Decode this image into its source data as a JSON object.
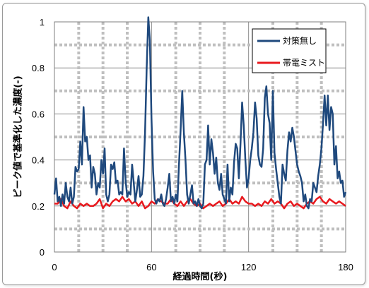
{
  "chart_data": {
    "type": "line",
    "title": "",
    "xlabel": "経過時間(秒)",
    "ylabel": "ピーク値で基準化した濃度(-)",
    "xlim": [
      0,
      180
    ],
    "ylim": [
      0,
      1
    ],
    "x_ticks": [
      0,
      60,
      120,
      180
    ],
    "y_ticks": [
      0,
      0.2,
      0.4,
      0.6,
      0.8,
      1
    ],
    "x_tick_labels": [
      "0",
      "60",
      "120",
      "180"
    ],
    "y_tick_labels": [
      "0",
      "0.2",
      "0.4",
      "0.6",
      "0.8",
      "1"
    ],
    "grid": true,
    "legend_position": "top-right",
    "series": [
      {
        "name": "対策無し",
        "color": "#1f497d",
        "points": [
          [
            0,
            0.25
          ],
          [
            1,
            0.32
          ],
          [
            2,
            0.22
          ],
          [
            3,
            0.24
          ],
          [
            4,
            0.2
          ],
          [
            5,
            0.25
          ],
          [
            6,
            0.21
          ],
          [
            7,
            0.3
          ],
          [
            8,
            0.24
          ],
          [
            9,
            0.22
          ],
          [
            10,
            0.28
          ],
          [
            11,
            0.21
          ],
          [
            12,
            0.24
          ],
          [
            13,
            0.37
          ],
          [
            14,
            0.35
          ],
          [
            15,
            0.36
          ],
          [
            16,
            0.48
          ],
          [
            17,
            0.38
          ],
          [
            18,
            0.63
          ],
          [
            19,
            0.48
          ],
          [
            20,
            0.5
          ],
          [
            21,
            0.4
          ],
          [
            22,
            0.42
          ],
          [
            23,
            0.28
          ],
          [
            24,
            0.37
          ],
          [
            25,
            0.34
          ],
          [
            26,
            0.25
          ],
          [
            27,
            0.3
          ],
          [
            28,
            0.28
          ],
          [
            29,
            0.4
          ],
          [
            30,
            0.34
          ],
          [
            31,
            0.45
          ],
          [
            32,
            0.25
          ],
          [
            33,
            0.22
          ],
          [
            34,
            0.25
          ],
          [
            35,
            0.38
          ],
          [
            36,
            0.36
          ],
          [
            37,
            0.39
          ],
          [
            38,
            0.3
          ],
          [
            39,
            0.31
          ],
          [
            40,
            0.25
          ],
          [
            41,
            0.26
          ],
          [
            42,
            0.25
          ],
          [
            43,
            0.45
          ],
          [
            44,
            0.31
          ],
          [
            45,
            0.24
          ],
          [
            46,
            0.26
          ],
          [
            47,
            0.25
          ],
          [
            48,
            0.38
          ],
          [
            49,
            0.3
          ],
          [
            50,
            0.22
          ],
          [
            51,
            0.27
          ],
          [
            52,
            0.33
          ],
          [
            53,
            0.24
          ],
          [
            54,
            0.25
          ],
          [
            55,
            0.33
          ],
          [
            56,
            0.52
          ],
          [
            57,
            0.8
          ],
          [
            58,
            1.02
          ],
          [
            59,
            0.92
          ],
          [
            60,
            0.58
          ],
          [
            61,
            0.35
          ],
          [
            62,
            0.23
          ],
          [
            63,
            0.21
          ],
          [
            64,
            0.23
          ],
          [
            65,
            0.22
          ],
          [
            66,
            0.25
          ],
          [
            67,
            0.21
          ],
          [
            68,
            0.2
          ],
          [
            69,
            0.23
          ],
          [
            70,
            0.28
          ],
          [
            71,
            0.34
          ],
          [
            72,
            0.22
          ],
          [
            73,
            0.24
          ],
          [
            74,
            0.21
          ],
          [
            75,
            0.25
          ],
          [
            76,
            0.22
          ],
          [
            77,
            0.38
          ],
          [
            78,
            0.53
          ],
          [
            79,
            0.7
          ],
          [
            80,
            0.52
          ],
          [
            81,
            0.4
          ],
          [
            82,
            0.25
          ],
          [
            83,
            0.21
          ],
          [
            84,
            0.25
          ],
          [
            85,
            0.29
          ],
          [
            86,
            0.21
          ],
          [
            87,
            0.22
          ],
          [
            88,
            0.2
          ],
          [
            89,
            0.23
          ],
          [
            90,
            0.2
          ],
          [
            91,
            0.19
          ],
          [
            92,
            0.21
          ],
          [
            93,
            0.38
          ],
          [
            94,
            0.4
          ],
          [
            95,
            0.55
          ],
          [
            96,
            0.38
          ],
          [
            97,
            0.49
          ],
          [
            98,
            0.43
          ],
          [
            99,
            0.34
          ],
          [
            100,
            0.41
          ],
          [
            101,
            0.3
          ],
          [
            102,
            0.27
          ],
          [
            103,
            0.34
          ],
          [
            104,
            0.25
          ],
          [
            105,
            0.23
          ],
          [
            106,
            0.21
          ],
          [
            107,
            0.38
          ],
          [
            108,
            0.22
          ],
          [
            109,
            0.28
          ],
          [
            110,
            0.25
          ],
          [
            111,
            0.39
          ],
          [
            112,
            0.47
          ],
          [
            113,
            0.45
          ],
          [
            114,
            0.32
          ],
          [
            115,
            0.47
          ],
          [
            116,
            0.65
          ],
          [
            117,
            0.55
          ],
          [
            118,
            0.4
          ],
          [
            119,
            0.28
          ],
          [
            120,
            0.32
          ],
          [
            121,
            0.4
          ],
          [
            122,
            0.45
          ],
          [
            123,
            0.52
          ],
          [
            124,
            0.65
          ],
          [
            125,
            0.58
          ],
          [
            126,
            0.42
          ],
          [
            127,
            0.38
          ],
          [
            128,
            0.37
          ],
          [
            129,
            0.45
          ],
          [
            130,
            0.67
          ],
          [
            131,
            0.72
          ],
          [
            132,
            0.6
          ],
          [
            133,
            0.56
          ],
          [
            134,
            0.4
          ],
          [
            135,
            0.7
          ],
          [
            136,
            0.43
          ],
          [
            137,
            0.36
          ],
          [
            138,
            0.3
          ],
          [
            139,
            0.24
          ],
          [
            140,
            0.21
          ],
          [
            141,
            0.38
          ],
          [
            142,
            0.34
          ],
          [
            143,
            0.31
          ],
          [
            144,
            0.44
          ],
          [
            145,
            0.52
          ],
          [
            146,
            0.48
          ],
          [
            147,
            0.54
          ],
          [
            148,
            0.5
          ],
          [
            149,
            0.44
          ],
          [
            150,
            0.38
          ],
          [
            151,
            0.35
          ],
          [
            152,
            0.33
          ],
          [
            153,
            0.3
          ],
          [
            154,
            0.22
          ],
          [
            155,
            0.25
          ],
          [
            156,
            0.2
          ],
          [
            157,
            0.19
          ],
          [
            158,
            0.23
          ],
          [
            159,
            0.22
          ],
          [
            160,
            0.3
          ],
          [
            161,
            0.28
          ],
          [
            162,
            0.26
          ],
          [
            163,
            0.33
          ],
          [
            164,
            0.38
          ],
          [
            165,
            0.45
          ],
          [
            166,
            0.56
          ],
          [
            167,
            0.68
          ],
          [
            168,
            0.55
          ],
          [
            169,
            0.68
          ],
          [
            170,
            0.53
          ],
          [
            171,
            0.63
          ],
          [
            172,
            0.6
          ],
          [
            173,
            0.38
          ],
          [
            174,
            0.46
          ],
          [
            175,
            0.32
          ],
          [
            176,
            0.35
          ],
          [
            177,
            0.3
          ],
          [
            178,
            0.31
          ],
          [
            179,
            0.24
          ],
          [
            180,
            0.26
          ]
        ]
      },
      {
        "name": "帯電ミスト",
        "color": "#e8191e",
        "points": [
          [
            0,
            0.21
          ],
          [
            2,
            0.21
          ],
          [
            4,
            0.23
          ],
          [
            6,
            0.2
          ],
          [
            8,
            0.19
          ],
          [
            10,
            0.22
          ],
          [
            12,
            0.2
          ],
          [
            14,
            0.19
          ],
          [
            16,
            0.21
          ],
          [
            18,
            0.2
          ],
          [
            20,
            0.21
          ],
          [
            22,
            0.2
          ],
          [
            24,
            0.2
          ],
          [
            26,
            0.21
          ],
          [
            28,
            0.23
          ],
          [
            30,
            0.19
          ],
          [
            32,
            0.21
          ],
          [
            34,
            0.2
          ],
          [
            36,
            0.22
          ],
          [
            38,
            0.23
          ],
          [
            40,
            0.22
          ],
          [
            42,
            0.24
          ],
          [
            44,
            0.22
          ],
          [
            46,
            0.23
          ],
          [
            48,
            0.21
          ],
          [
            50,
            0.22
          ],
          [
            52,
            0.2
          ],
          [
            54,
            0.22
          ],
          [
            56,
            0.19
          ],
          [
            58,
            0.2
          ],
          [
            60,
            0.22
          ],
          [
            62,
            0.21
          ],
          [
            64,
            0.23
          ],
          [
            66,
            0.22
          ],
          [
            68,
            0.21
          ],
          [
            70,
            0.21
          ],
          [
            72,
            0.23
          ],
          [
            74,
            0.21
          ],
          [
            76,
            0.2
          ],
          [
            78,
            0.22
          ],
          [
            80,
            0.2
          ],
          [
            82,
            0.22
          ],
          [
            84,
            0.23
          ],
          [
            86,
            0.21
          ],
          [
            88,
            0.2
          ],
          [
            90,
            0.21
          ],
          [
            92,
            0.19
          ],
          [
            94,
            0.2
          ],
          [
            96,
            0.21
          ],
          [
            98,
            0.2
          ],
          [
            100,
            0.21
          ],
          [
            102,
            0.22
          ],
          [
            104,
            0.2
          ],
          [
            106,
            0.21
          ],
          [
            108,
            0.23
          ],
          [
            110,
            0.21
          ],
          [
            112,
            0.22
          ],
          [
            114,
            0.21
          ],
          [
            116,
            0.24
          ],
          [
            118,
            0.22
          ],
          [
            120,
            0.21
          ],
          [
            122,
            0.21
          ],
          [
            124,
            0.2
          ],
          [
            126,
            0.21
          ],
          [
            128,
            0.2
          ],
          [
            130,
            0.22
          ],
          [
            132,
            0.21
          ],
          [
            134,
            0.23
          ],
          [
            136,
            0.21
          ],
          [
            138,
            0.22
          ],
          [
            140,
            0.21
          ],
          [
            142,
            0.19
          ],
          [
            144,
            0.21
          ],
          [
            146,
            0.22
          ],
          [
            148,
            0.2
          ],
          [
            150,
            0.21
          ],
          [
            152,
            0.2
          ],
          [
            154,
            0.19
          ],
          [
            156,
            0.21
          ],
          [
            158,
            0.22
          ],
          [
            160,
            0.21
          ],
          [
            162,
            0.23
          ],
          [
            164,
            0.24
          ],
          [
            166,
            0.22
          ],
          [
            168,
            0.21
          ],
          [
            170,
            0.23
          ],
          [
            172,
            0.22
          ],
          [
            174,
            0.21
          ],
          [
            176,
            0.22
          ],
          [
            178,
            0.21
          ],
          [
            180,
            0.2
          ]
        ]
      }
    ]
  }
}
